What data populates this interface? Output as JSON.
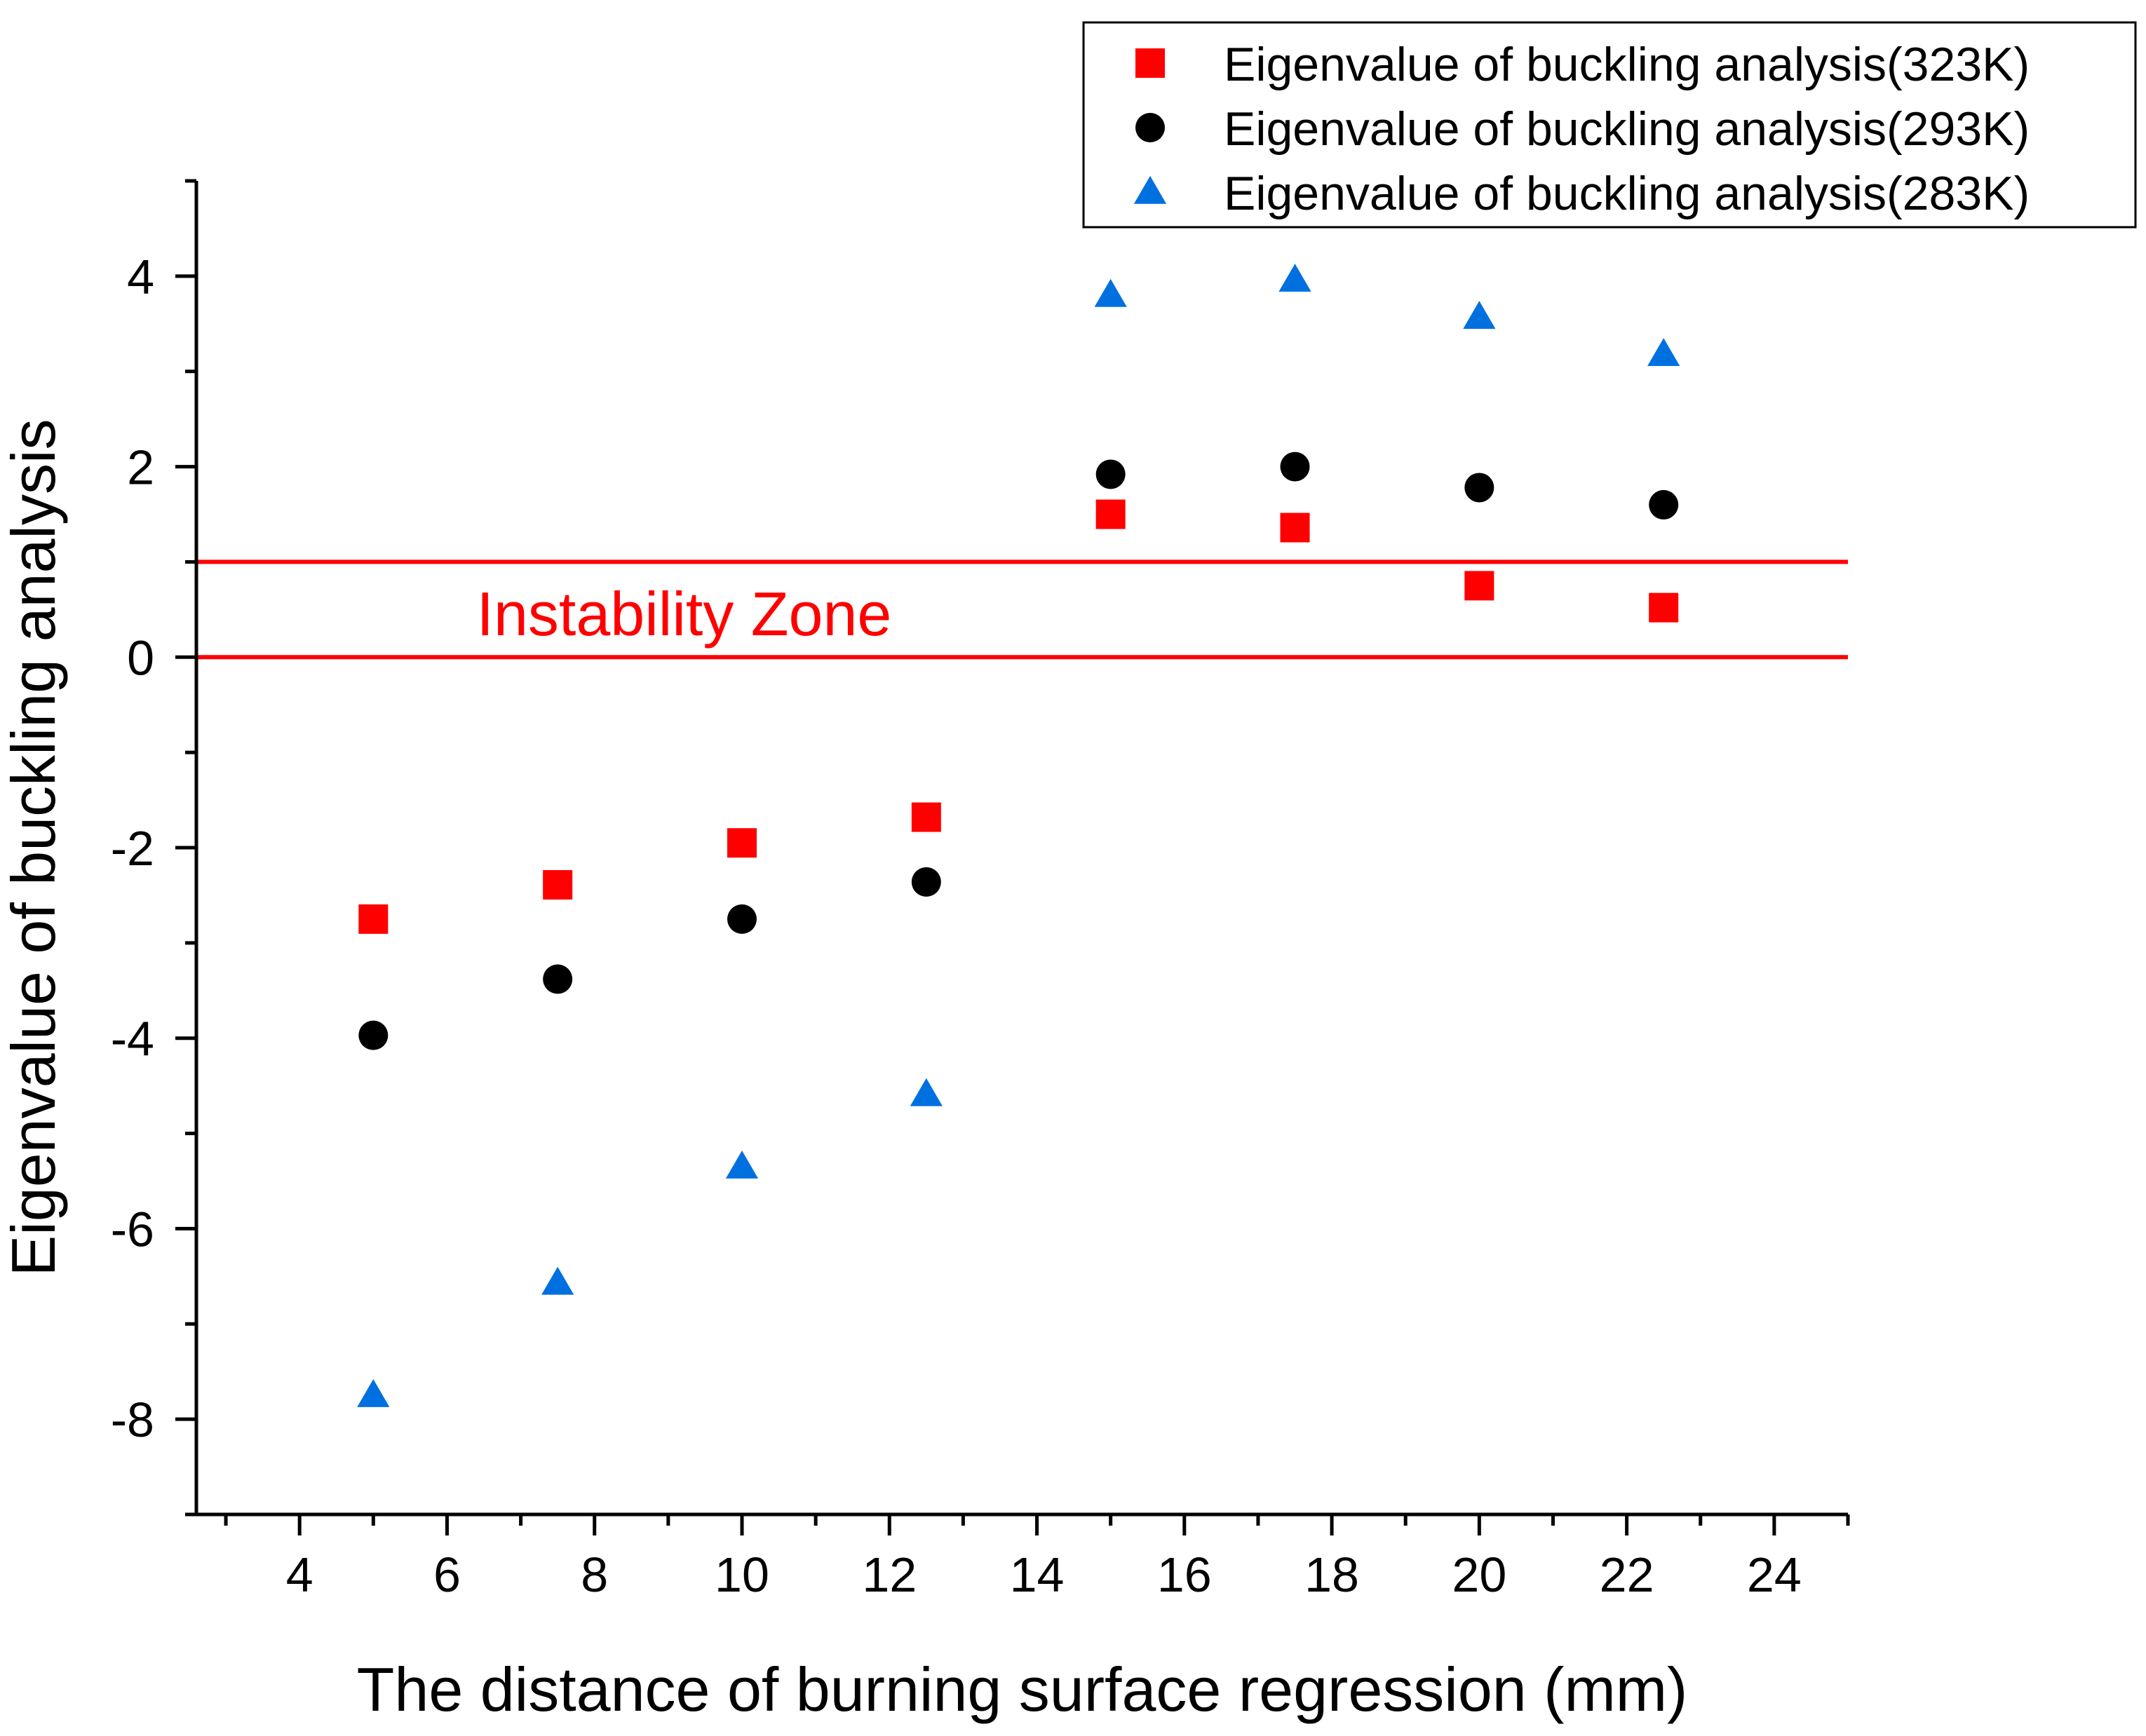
{
  "chart_data": {
    "type": "scatter",
    "title": "",
    "xlabel": "The distance of burning surface regression (mm)",
    "ylabel": "Eigenvalue of buckling analysis",
    "xlim": [
      2.6,
      25
    ],
    "ylim": [
      -9,
      5
    ],
    "x_major_ticks": [
      4,
      6,
      8,
      10,
      12,
      14,
      16,
      18,
      20,
      22,
      24
    ],
    "x_minor_ticks": [
      3,
      5,
      7,
      9,
      11,
      13,
      15,
      17,
      19,
      21,
      23,
      25
    ],
    "y_major_ticks": [
      -8,
      -6,
      -4,
      -2,
      0,
      2,
      4
    ],
    "y_minor_ticks": [
      -9,
      -7,
      -5,
      -3,
      -1,
      1,
      3,
      5
    ],
    "x_tick_labels": [
      "4",
      "6",
      "8",
      "10",
      "12",
      "14",
      "16",
      "18",
      "20",
      "22",
      "24"
    ],
    "y_tick_labels": [
      "-8",
      "-6",
      "-4",
      "-2",
      "0",
      "2",
      "4"
    ],
    "legend_position": "top-right",
    "series": [
      {
        "name": "Eigenvalue of buckling analysis(323K)",
        "marker": "square",
        "color": "#ff0000",
        "x": [
          5,
          7.5,
          10,
          12.5,
          15,
          17.5,
          20,
          22.5
        ],
        "y": [
          -2.75,
          -2.39,
          -1.95,
          -1.68,
          1.5,
          1.36,
          0.75,
          0.52
        ]
      },
      {
        "name": "Eigenvalue of buckling analysis(293K)",
        "marker": "circle",
        "color": "#000000",
        "x": [
          5,
          7.5,
          10,
          12.5,
          15,
          17.5,
          20,
          22.5
        ],
        "y": [
          -3.97,
          -3.38,
          -2.75,
          -2.36,
          1.92,
          2.0,
          1.78,
          1.6
        ]
      },
      {
        "name": "Eigenvalue of buckling analysis(283K)",
        "marker": "triangle",
        "color": "#0070e0",
        "x": [
          5,
          7.5,
          10,
          12.5,
          15,
          17.5,
          20,
          22.5
        ],
        "y": [
          -7.75,
          -6.57,
          -5.35,
          -4.59,
          3.8,
          3.96,
          3.57,
          3.18
        ]
      }
    ],
    "reference_lines": [
      {
        "y": 1,
        "color": "#ff0000"
      },
      {
        "y": 0,
        "color": "#ff0000"
      }
    ],
    "annotations": [
      {
        "text": "Instability Zone",
        "x": 6.4,
        "y": 0.45,
        "color": "#ff0000"
      }
    ]
  }
}
